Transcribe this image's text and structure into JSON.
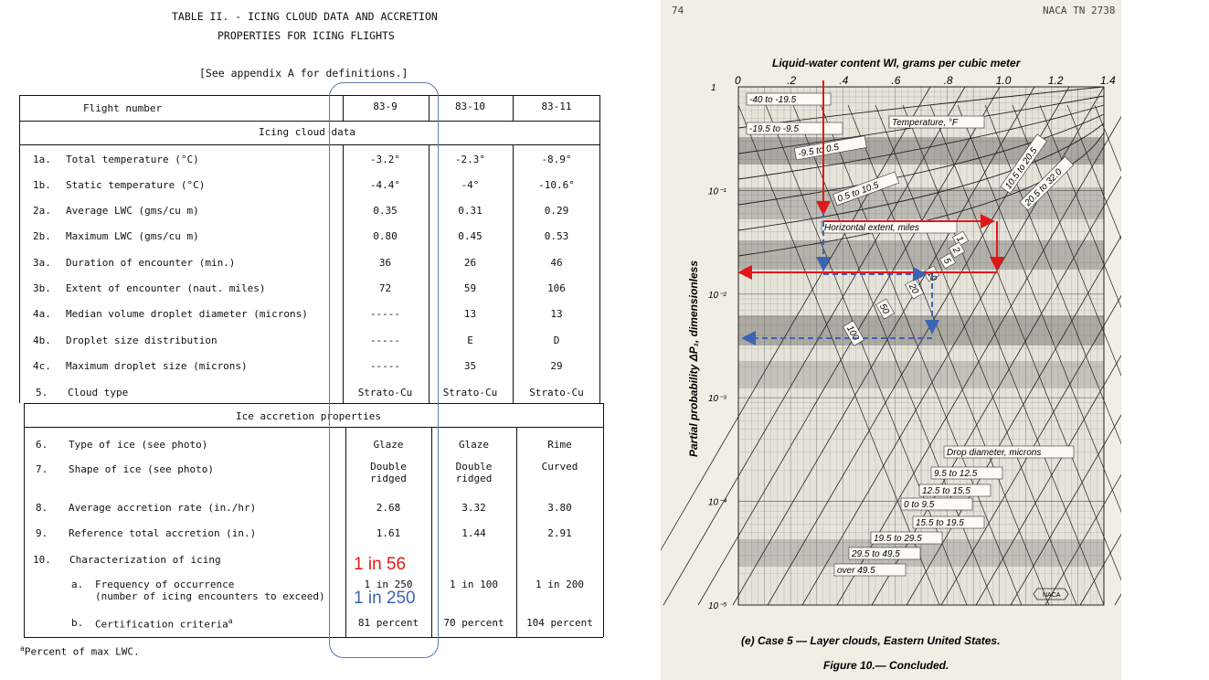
{
  "table": {
    "title_line1": "TABLE II. - ICING CLOUD DATA AND ACCRETION",
    "title_line2": "PROPERTIES FOR ICING FLIGHTS",
    "note": "[See appendix A for definitions.]",
    "header": {
      "label": "Flight number",
      "flights": [
        "83-9",
        "83-10",
        "83-11"
      ]
    },
    "section1": "Icing cloud data",
    "section2": "Ice accretion properties",
    "rows": [
      {
        "num": "1a.",
        "label": "Total temperature (°C)",
        "v": [
          "-3.2°",
          "-2.3°",
          "-8.9°"
        ]
      },
      {
        "num": "1b.",
        "label": "Static temperature (°C)",
        "v": [
          "-4.4°",
          "-4°",
          "-10.6°"
        ]
      },
      {
        "num": "2a.",
        "label": "Average LWC (gms/cu m)",
        "v": [
          "0.35",
          "0.31",
          "0.29"
        ]
      },
      {
        "num": "2b.",
        "label": "Maximum LWC (gms/cu m)",
        "v": [
          "0.80",
          "0.45",
          "0.53"
        ]
      },
      {
        "num": "3a.",
        "label": "Duration of encounter (min.)",
        "v": [
          "36",
          "26",
          "46"
        ]
      },
      {
        "num": "3b.",
        "label": "Extent of encounter (naut. miles)",
        "v": [
          "72",
          "59",
          "106"
        ]
      },
      {
        "num": "4a.",
        "label": "Median volume droplet diameter (microns)",
        "v": [
          "-----",
          "13",
          "13"
        ]
      },
      {
        "num": "4b.",
        "label": "Droplet size distribution",
        "v": [
          "-----",
          "E",
          "D"
        ]
      },
      {
        "num": "4c.",
        "label": "Maximum droplet size (microns)",
        "v": [
          "-----",
          "35",
          "29"
        ]
      },
      {
        "num": "5.",
        "label": "Cloud type",
        "v": [
          "Strato-Cu",
          "Strato-Cu",
          "Strato-Cu"
        ]
      },
      {
        "num": "6.",
        "label": "Type of ice (see photo)",
        "v": [
          "Glaze",
          "Glaze",
          "Rime"
        ]
      },
      {
        "num": "7.",
        "label": "Shape of ice (see photo)",
        "v": [
          "Double",
          "Double",
          "Curved"
        ],
        "v2": [
          "ridged",
          "ridged",
          ""
        ]
      },
      {
        "num": "8.",
        "label": "Average accretion rate (in./hr)",
        "v": [
          "2.68",
          "3.32",
          "3.80"
        ]
      },
      {
        "num": "9.",
        "label": "Reference total accretion (in.)",
        "v": [
          "1.61",
          "1.44",
          "2.91"
        ]
      },
      {
        "num": "10.",
        "label": "Characterization of icing",
        "v": [
          "",
          "",
          ""
        ]
      },
      {
        "num": "a.",
        "label": "Frequency of occurrence",
        "label2": "(number of icing encounters to exceed)",
        "v": [
          "1 in 250",
          "1 in 100",
          "1 in 200"
        ]
      },
      {
        "num": "b.",
        "label": "Certification criteria",
        "sup": "a",
        "v": [
          "81 percent",
          "70 percent",
          "104 percent"
        ]
      }
    ],
    "footnote_mark": "a",
    "footnote": "Percent of max LWC."
  },
  "annotations": {
    "red": "1 in 56",
    "blue": "1 in 250",
    "red_color": "#e01818",
    "blue_color": "#3a64b4",
    "oval_color": "#5b7bb0"
  },
  "figure": {
    "page_number": "74",
    "report": "NACA TN 2738",
    "top_axis_title": "Liquid-water content W",
    "top_axis_sub": "l",
    "top_axis_title_rest": ", grams per cubic meter",
    "x_ticks": [
      "0",
      ".2",
      ".4",
      ".6",
      ".8",
      "1.0",
      "1.2",
      "1.4"
    ],
    "y_ticks": [
      "1",
      "10⁻¹",
      "10⁻²",
      "10⁻³",
      "10⁻⁴",
      "10⁻⁵"
    ],
    "y_axis_title": "Partial probability ΔP₁, dimensionless",
    "temp_title": "Temperature, °F",
    "temp_labels": [
      "-40 to -19.5",
      "-19.5 to -9.5",
      "-9.5 to 0.5",
      "0.5 to 10.5",
      "10.5 to 20.5",
      "20.5 to 32.0"
    ],
    "horiz_label": "Horizontal extent, miles",
    "extent_labels": [
      "1",
      "2",
      "5",
      "10",
      "20",
      "50",
      "100"
    ],
    "drop_title": "Drop diameter, microns",
    "drop_labels": [
      "9.5 to 12.5",
      "12.5 to 15.5",
      "0 to 9.5",
      "15.5 to 19.5",
      "19.5 to 29.5",
      "29.5 to 49.5",
      "over 49.5"
    ],
    "logo": "NACA",
    "caption": "(e) Case 5 — Layer clouds, Eastern United States.",
    "figure_title": "Figure 10.— Concluded."
  }
}
